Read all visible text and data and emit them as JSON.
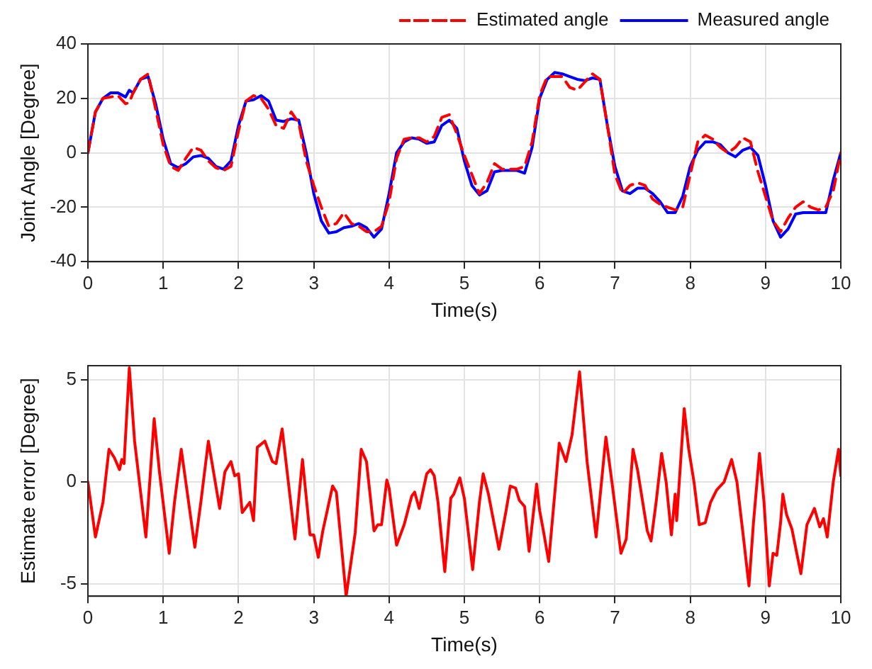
{
  "chart_data": [
    {
      "type": "line",
      "xlabel": "Time(s)",
      "ylabel": "Joint Angle [Degree]",
      "xlim": [
        0,
        10
      ],
      "xticks": [
        0,
        1,
        2,
        3,
        4,
        5,
        6,
        7,
        8,
        9,
        10
      ],
      "ylim": [
        -40,
        40
      ],
      "yticks": [
        -40,
        -20,
        0,
        20,
        40
      ],
      "grid": true,
      "legend": "top right",
      "marker": "none",
      "x": [
        0,
        0.1,
        0.2,
        0.3,
        0.4,
        0.5,
        0.55,
        0.6,
        0.7,
        0.8,
        0.9,
        1,
        1.1,
        1.2,
        1.3,
        1.4,
        1.5,
        1.6,
        1.7,
        1.8,
        1.9,
        2,
        2.1,
        2.2,
        2.3,
        2.4,
        2.5,
        2.6,
        2.7,
        2.8,
        2.9,
        3,
        3.1,
        3.2,
        3.3,
        3.4,
        3.5,
        3.6,
        3.7,
        3.8,
        3.9,
        4,
        4.1,
        4.2,
        4.3,
        4.4,
        4.5,
        4.6,
        4.7,
        4.8,
        4.9,
        5,
        5.1,
        5.2,
        5.3,
        5.4,
        5.5,
        5.6,
        5.7,
        5.8,
        5.9,
        6,
        6.1,
        6.2,
        6.3,
        6.4,
        6.5,
        6.6,
        6.7,
        6.8,
        6.9,
        7,
        7.1,
        7.2,
        7.3,
        7.4,
        7.5,
        7.6,
        7.7,
        7.8,
        7.9,
        8,
        8.1,
        8.2,
        8.3,
        8.4,
        8.5,
        8.6,
        8.7,
        8.8,
        8.9,
        9,
        9.1,
        9.2,
        9.3,
        9.4,
        9.5,
        9.6,
        9.7,
        9.8,
        9.9,
        10
      ],
      "series": [
        {
          "name": "Estimated angle",
          "color": "#ff0000",
          "line_style": "dashed",
          "values": [
            0,
            15,
            20,
            20.5,
            21,
            18,
            18.5,
            22,
            27,
            29,
            16,
            3,
            -5,
            -6.5,
            -2,
            2,
            1,
            -3,
            -5.5,
            -6.5,
            -5,
            8,
            19,
            21,
            20,
            16,
            10,
            9,
            15,
            11,
            -3,
            -12,
            -20,
            -27,
            -26,
            -22,
            -26,
            -27,
            -29,
            -29,
            -27,
            -18,
            -2,
            5,
            5.5,
            5.5,
            4,
            6,
            13,
            14,
            7,
            -1,
            -8,
            -15,
            -11,
            -4,
            -6,
            -6,
            -6,
            -5,
            4,
            21,
            28,
            28,
            28,
            24,
            23,
            26,
            29,
            27,
            10,
            -8,
            -15,
            -12,
            -11,
            -12,
            -17,
            -19,
            -20,
            -21,
            -20,
            -8,
            4,
            6.5,
            5,
            2,
            0,
            2,
            5.5,
            4,
            -7,
            -16,
            -25,
            -29,
            -24,
            -20,
            -18,
            -20,
            -21,
            -20,
            -14,
            0
          ]
        },
        {
          "name": "Measured angle",
          "color": "#0000ff",
          "line_style": "solid",
          "values": [
            0,
            15,
            20,
            22,
            22,
            20.5,
            23,
            22,
            27,
            28,
            18,
            5,
            -4,
            -5.5,
            -4,
            -1.5,
            -1,
            -2,
            -5,
            -6,
            -3,
            10,
            19,
            19.5,
            21,
            19,
            12,
            11.5,
            12.5,
            12,
            0,
            -15,
            -25,
            -29.5,
            -29,
            -27.5,
            -27,
            -26,
            -27.5,
            -31,
            -28,
            -15,
            0,
            4,
            5.5,
            5,
            3.5,
            4,
            10,
            12,
            9,
            -3,
            -12,
            -15.5,
            -14,
            -7,
            -6.5,
            -6.5,
            -6.5,
            -7.5,
            2,
            20,
            27,
            29.5,
            29,
            28,
            27,
            26.5,
            27.5,
            27,
            10,
            -5,
            -14,
            -15,
            -13,
            -13,
            -15,
            -18,
            -22,
            -22,
            -16,
            -5,
            1,
            4,
            4,
            3,
            0,
            -1.5,
            1,
            2,
            -1,
            -12,
            -25,
            -31,
            -28,
            -22.5,
            -22,
            -22,
            -22,
            -22,
            -10,
            0
          ]
        }
      ]
    },
    {
      "type": "line",
      "xlabel": "Time(s)",
      "ylabel": "Estimate error [Degree]",
      "xlim": [
        0,
        10
      ],
      "xticks": [
        0,
        1,
        2,
        3,
        4,
        5,
        6,
        7,
        8,
        9,
        10
      ],
      "ylim": [
        -5.6,
        5.7
      ],
      "yticks": [
        -5,
        0,
        5
      ],
      "grid": true,
      "legend": false,
      "marker": "none",
      "series": [
        {
          "color": "#ff0000",
          "line_style": "solid",
          "x": [
            0,
            0.1,
            0.2,
            0.28,
            0.35,
            0.42,
            0.45,
            0.48,
            0.55,
            0.62,
            0.7,
            0.77,
            0.88,
            0.95,
            1.08,
            1.15,
            1.24,
            1.3,
            1.42,
            1.5,
            1.6,
            1.75,
            1.82,
            1.9,
            1.95,
            2,
            2.05,
            2.15,
            2.2,
            2.25,
            2.35,
            2.45,
            2.5,
            2.58,
            2.75,
            2.85,
            2.95,
            3,
            3.06,
            3.12,
            3.25,
            3.3,
            3.43,
            3.55,
            3.63,
            3.7,
            3.8,
            3.85,
            3.9,
            3.97,
            4,
            4.1,
            4.2,
            4.3,
            4.34,
            4.4,
            4.5,
            4.55,
            4.6,
            4.65,
            4.74,
            4.82,
            4.86,
            4.94,
            5,
            5.11,
            5.2,
            5.25,
            5.32,
            5.46,
            5.55,
            5.61,
            5.68,
            5.73,
            5.8,
            5.86,
            5.96,
            6,
            6.05,
            6.12,
            6.2,
            6.26,
            6.35,
            6.43,
            6.53,
            6.63,
            6.75,
            6.88,
            6.96,
            7.08,
            7.15,
            7.24,
            7.3,
            7.43,
            7.48,
            7.55,
            7.62,
            7.68,
            7.75,
            7.8,
            7.82,
            7.92,
            7.98,
            8.05,
            8.12,
            8.2,
            8.27,
            8.35,
            8.45,
            8.55,
            8.62,
            8.7,
            8.78,
            8.84,
            8.92,
            8.98,
            9.05,
            9.1,
            9.15,
            9.2,
            9.23,
            9.28,
            9.35,
            9.47,
            9.55,
            9.65,
            9.72,
            9.77,
            9.82,
            9.9,
            9.97,
            10
          ],
          "values": [
            0,
            -2.7,
            -1,
            1.6,
            1.2,
            0.6,
            1.1,
            0.9,
            5.6,
            2,
            -0.5,
            -2.7,
            3.1,
            0.5,
            -3.5,
            -1,
            1.6,
            0,
            -3.2,
            -1,
            2,
            -1.3,
            0.5,
            1,
            0.3,
            0.4,
            -1.5,
            -1,
            -1.9,
            1.7,
            2,
            1,
            0.9,
            2.6,
            -2.8,
            1.1,
            -2.6,
            -2.6,
            -3.7,
            -2.4,
            -0.2,
            -0.5,
            -5.6,
            -2.5,
            1.6,
            1,
            -2.4,
            -2.1,
            -2.1,
            0.1,
            -0.3,
            -3.1,
            -2.1,
            -0.7,
            -0.5,
            -1.3,
            0.4,
            0.6,
            0.3,
            -1,
            -4.4,
            -0.8,
            -0.6,
            0.2,
            -0.8,
            -4.3,
            -1,
            0.4,
            -0.6,
            -3.3,
            -1.5,
            -0.2,
            -0.3,
            -0.9,
            -1.2,
            -3.4,
            -0.1,
            -1.4,
            -2.4,
            -3.9,
            -0.6,
            1.9,
            1,
            2.3,
            5.4,
            1,
            -2.7,
            2.2,
            0,
            -3.5,
            -2.8,
            1.6,
            0.6,
            -2.4,
            -2.9,
            -0.9,
            1.4,
            0,
            -2.6,
            -0.6,
            -1.9,
            3.6,
            1.6,
            0,
            -2.1,
            -2,
            -1,
            -0.4,
            0,
            1.1,
            0,
            -2.5,
            -5.1,
            -2,
            1.4,
            -1,
            -5.1,
            -3.5,
            -3.6,
            -2,
            -0.6,
            -1.6,
            -2.3,
            -4.5,
            -2.1,
            -1.3,
            -2.2,
            -1.8,
            -2.7,
            0,
            1.6,
            0.3
          ]
        }
      ]
    }
  ]
}
